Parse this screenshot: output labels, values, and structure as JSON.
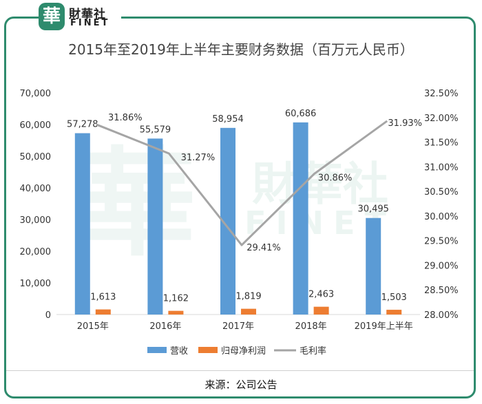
{
  "brand": {
    "mark": "華",
    "name_cn": "財華社",
    "name_en": "FINET"
  },
  "source": "来源：公司公告",
  "colors": {
    "frame": "#2e8b6d",
    "revenue": "#5b9bd5",
    "profit": "#ed7d31",
    "margin": "#a5a5a5"
  },
  "chart_data": {
    "type": "bar",
    "title": "2015年至2019年上半年主要财务数据（百万元人民币）",
    "categories": [
      "2015年",
      "2016年",
      "2017年",
      "2018年",
      "2019年上半年"
    ],
    "series": [
      {
        "name": "营收",
        "type": "bar",
        "axis": "left",
        "values": [
          57278,
          55579,
          58954,
          60686,
          30495
        ],
        "labels": [
          "57,278",
          "55,579",
          "58,954",
          "60,686",
          "30,495"
        ]
      },
      {
        "name": "归母净利润",
        "type": "bar",
        "axis": "left",
        "values": [
          1613,
          1162,
          1819,
          2463,
          1503
        ],
        "labels": [
          "1,613",
          "1,162",
          "1,819",
          "2,463",
          "1,503"
        ]
      },
      {
        "name": "毛利率",
        "type": "line",
        "axis": "right",
        "values": [
          31.86,
          31.27,
          29.41,
          30.86,
          31.93
        ],
        "labels": [
          "31.86%",
          "31.27%",
          "29.41%",
          "30.86%",
          "31.93%"
        ]
      }
    ],
    "yleft": {
      "min": 0,
      "max": 70000,
      "ticks": [
        "0",
        "10,000",
        "20,000",
        "30,000",
        "40,000",
        "50,000",
        "60,000",
        "70,000"
      ]
    },
    "yright": {
      "min": 28.0,
      "max": 32.5,
      "ticks": [
        "28.00%",
        "28.50%",
        "29.00%",
        "29.50%",
        "30.00%",
        "30.50%",
        "31.00%",
        "31.50%",
        "32.00%",
        "32.50%"
      ]
    },
    "legend_position": "bottom",
    "grid": false
  }
}
